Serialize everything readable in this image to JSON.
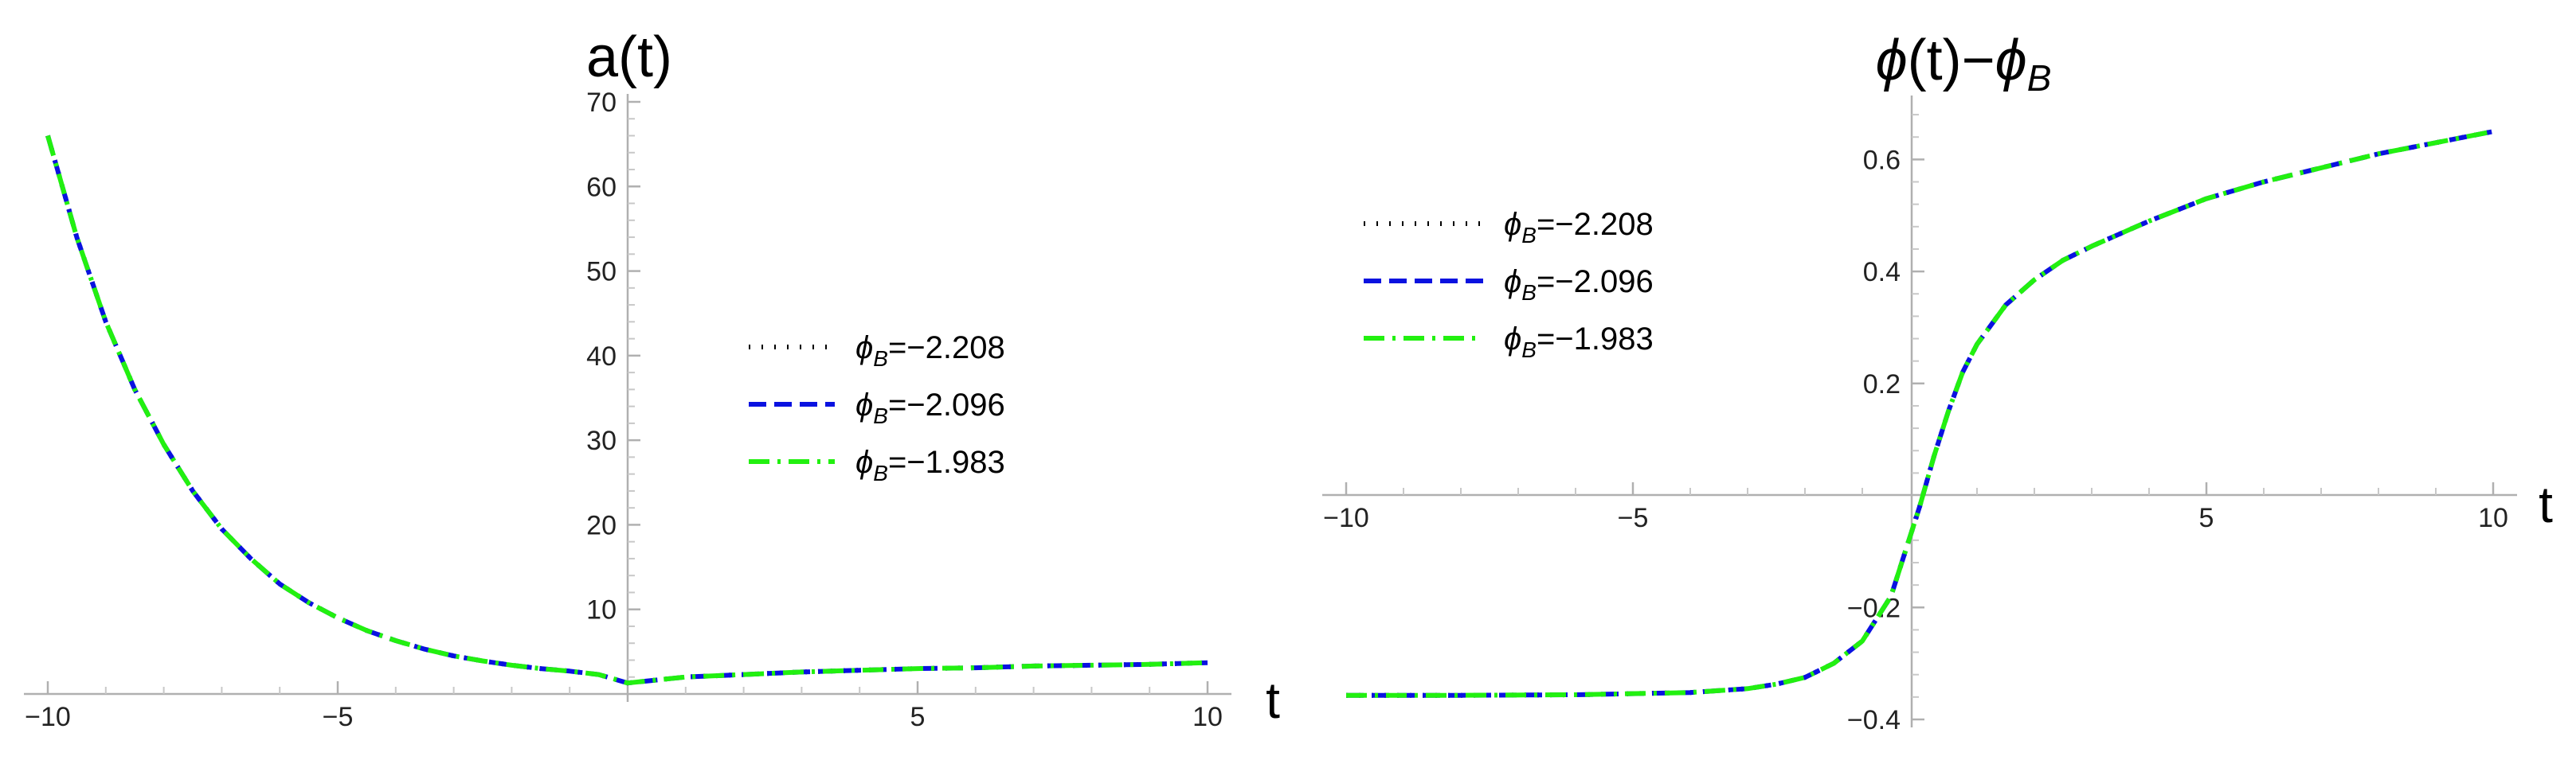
{
  "chart_data": [
    {
      "type": "line",
      "title": "a(t)",
      "xlabel": "t",
      "ylabel": "",
      "xlim": [
        -10,
        10
      ],
      "ylim": [
        0,
        70
      ],
      "x_ticks": [
        -10,
        -5,
        5,
        10
      ],
      "y_ticks": [
        10,
        20,
        30,
        40,
        50,
        60,
        70
      ],
      "legend_position": "center-right",
      "series": [
        {
          "name": "ϕB=−2.208",
          "color": "#000000",
          "style": "dotted",
          "x": [
            -10,
            -9.5,
            -9,
            -8.5,
            -8,
            -7.5,
            -7,
            -6.5,
            -6,
            -5.5,
            -5,
            -4.5,
            -4,
            -3.5,
            -3,
            -2.5,
            -2,
            -1.5,
            -1,
            -0.5,
            0,
            1,
            2,
            3,
            4,
            5,
            6,
            7,
            8,
            9,
            10
          ],
          "y": [
            66,
            54,
            44,
            36,
            29.5,
            24,
            19.5,
            16,
            13,
            10.8,
            9,
            7.5,
            6.3,
            5.3,
            4.5,
            3.9,
            3.4,
            3.0,
            2.7,
            2.3,
            1.3,
            2.0,
            2.3,
            2.6,
            2.8,
            3.0,
            3.1,
            3.3,
            3.4,
            3.5,
            3.7
          ]
        },
        {
          "name": "ϕB=−2.096",
          "color": "#0a12e0",
          "style": "dashed",
          "x": [
            -10,
            -9.5,
            -9,
            -8.5,
            -8,
            -7.5,
            -7,
            -6.5,
            -6,
            -5.5,
            -5,
            -4.5,
            -4,
            -3.5,
            -3,
            -2.5,
            -2,
            -1.5,
            -1,
            -0.5,
            0,
            1,
            2,
            3,
            4,
            5,
            6,
            7,
            8,
            9,
            10
          ],
          "y": [
            66,
            54,
            44,
            36,
            29.5,
            24,
            19.5,
            16,
            13,
            10.8,
            9,
            7.5,
            6.3,
            5.3,
            4.5,
            3.9,
            3.4,
            3.0,
            2.7,
            2.3,
            1.3,
            2.0,
            2.3,
            2.6,
            2.8,
            3.0,
            3.1,
            3.3,
            3.4,
            3.5,
            3.7
          ]
        },
        {
          "name": "ϕB=−1.983",
          "color": "#22f010",
          "style": "dashdot",
          "x": [
            -10,
            -9.5,
            -9,
            -8.5,
            -8,
            -7.5,
            -7,
            -6.5,
            -6,
            -5.5,
            -5,
            -4.5,
            -4,
            -3.5,
            -3,
            -2.5,
            -2,
            -1.5,
            -1,
            -0.5,
            0,
            1,
            2,
            3,
            4,
            5,
            6,
            7,
            8,
            9,
            10
          ],
          "y": [
            66,
            54,
            44,
            36,
            29.5,
            24,
            19.5,
            16,
            13,
            10.8,
            9,
            7.5,
            6.3,
            5.3,
            4.5,
            3.9,
            3.4,
            3.0,
            2.7,
            2.3,
            1.3,
            2.0,
            2.3,
            2.6,
            2.8,
            3.0,
            3.1,
            3.3,
            3.4,
            3.5,
            3.7
          ]
        }
      ]
    },
    {
      "type": "line",
      "title": "ϕ(t)−ϕB",
      "xlabel": "t",
      "ylabel": "",
      "xlim": [
        -10,
        10
      ],
      "ylim": [
        -0.4,
        0.7
      ],
      "x_ticks": [
        -10,
        -5,
        5,
        10
      ],
      "y_ticks": [
        -0.4,
        -0.2,
        0.2,
        0.4,
        0.6
      ],
      "legend_position": "top-left",
      "series": [
        {
          "name": "ϕB=−2.208",
          "color": "#000000",
          "style": "dotted",
          "x": [
            -10,
            -8,
            -6,
            -4,
            -3,
            -2.5,
            -2,
            -1.5,
            -1,
            -0.5,
            0,
            0.25,
            0.5,
            0.75,
            1,
            1.5,
            2,
            2.5,
            3,
            4,
            5,
            6,
            7,
            8,
            9,
            10
          ],
          "y": [
            -0.357,
            -0.357,
            -0.356,
            -0.352,
            -0.345,
            -0.337,
            -0.325,
            -0.3,
            -0.26,
            -0.18,
            -0.02,
            0.07,
            0.15,
            0.22,
            0.27,
            0.34,
            0.385,
            0.42,
            0.445,
            0.49,
            0.53,
            0.56,
            0.585,
            0.61,
            0.63,
            0.65
          ]
        },
        {
          "name": "ϕB=−2.096",
          "color": "#0a12e0",
          "style": "dashed",
          "x": [
            -10,
            -8,
            -6,
            -4,
            -3,
            -2.5,
            -2,
            -1.5,
            -1,
            -0.5,
            0,
            0.25,
            0.5,
            0.75,
            1,
            1.5,
            2,
            2.5,
            3,
            4,
            5,
            6,
            7,
            8,
            9,
            10
          ],
          "y": [
            -0.357,
            -0.357,
            -0.356,
            -0.352,
            -0.345,
            -0.337,
            -0.325,
            -0.3,
            -0.26,
            -0.18,
            -0.02,
            0.07,
            0.15,
            0.22,
            0.27,
            0.34,
            0.385,
            0.42,
            0.445,
            0.49,
            0.53,
            0.56,
            0.585,
            0.61,
            0.63,
            0.65
          ]
        },
        {
          "name": "ϕB=−1.983",
          "color": "#22f010",
          "style": "dashdot",
          "x": [
            -10,
            -8,
            -6,
            -4,
            -3,
            -2.5,
            -2,
            -1.5,
            -1,
            -0.5,
            0,
            0.25,
            0.5,
            0.75,
            1,
            1.5,
            2,
            2.5,
            3,
            4,
            5,
            6,
            7,
            8,
            9,
            10
          ],
          "y": [
            -0.357,
            -0.357,
            -0.356,
            -0.352,
            -0.345,
            -0.337,
            -0.325,
            -0.3,
            -0.26,
            -0.18,
            -0.02,
            0.07,
            0.15,
            0.22,
            0.27,
            0.34,
            0.385,
            0.42,
            0.445,
            0.49,
            0.53,
            0.56,
            0.585,
            0.61,
            0.63,
            0.65
          ]
        }
      ]
    }
  ]
}
